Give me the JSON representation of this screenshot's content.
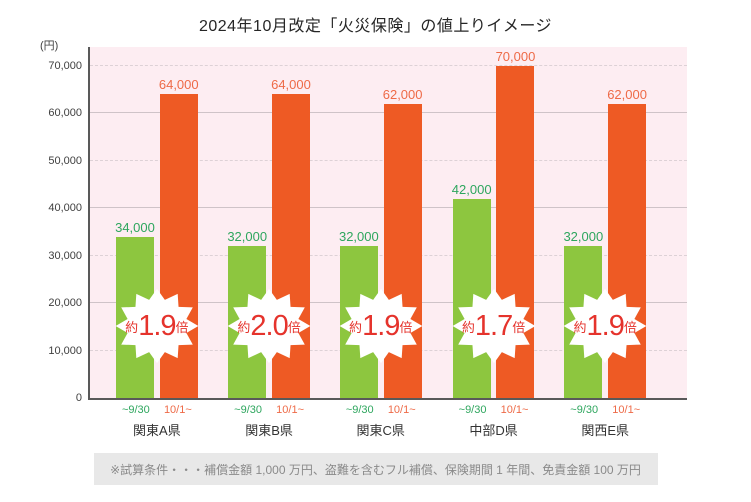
{
  "chart_data": {
    "type": "bar",
    "title": "2024年10月改定「火災保険」の値上りイメージ",
    "unit_label": "(円)",
    "ylim": [
      0,
      70000
    ],
    "yticks": [
      {
        "value": 0,
        "label": "0"
      },
      {
        "value": 10000,
        "label": "10,000"
      },
      {
        "value": 20000,
        "label": "20,000"
      },
      {
        "value": 30000,
        "label": "30,000"
      },
      {
        "value": 40000,
        "label": "40,000"
      },
      {
        "value": 50000,
        "label": "50,000"
      },
      {
        "value": 60000,
        "label": "60,000"
      },
      {
        "value": 70000,
        "label": "70,000"
      }
    ],
    "series": [
      {
        "name": "~9/30",
        "color": "#8dc63f"
      },
      {
        "name": "10/1~",
        "color": "#ee5a24"
      }
    ],
    "categories": [
      "関東A県",
      "関東B県",
      "関東C県",
      "中部D県",
      "関西E県"
    ],
    "groups": [
      {
        "category": "関東A県",
        "before": 34000,
        "after": 64000,
        "before_label": "34,000",
        "after_label": "64,000",
        "ratio_prefix": "約",
        "ratio_value": "1.9",
        "ratio_suffix": "倍"
      },
      {
        "category": "関東B県",
        "before": 32000,
        "after": 64000,
        "before_label": "32,000",
        "after_label": "64,000",
        "ratio_prefix": "約",
        "ratio_value": "2.0",
        "ratio_suffix": "倍"
      },
      {
        "category": "関東C県",
        "before": 32000,
        "after": 62000,
        "before_label": "32,000",
        "after_label": "62,000",
        "ratio_prefix": "約",
        "ratio_value": "1.9",
        "ratio_suffix": "倍"
      },
      {
        "category": "中部D県",
        "before": 42000,
        "after": 70000,
        "before_label": "42,000",
        "after_label": "70,000",
        "ratio_prefix": "約",
        "ratio_value": "1.7",
        "ratio_suffix": "倍"
      },
      {
        "category": "関西E県",
        "before": 32000,
        "after": 62000,
        "before_label": "32,000",
        "after_label": "62,000",
        "ratio_prefix": "約",
        "ratio_value": "1.9",
        "ratio_suffix": "倍"
      }
    ],
    "note": "※試算条件・・・補償金額 1,000 万円、盗難を含むフル補償、保険期間 1 年間、免責金額 100 万円",
    "legend_position": "below-bars",
    "grid": "horizontal, solid at even 10-thousands, dashed at odd 10-thousands"
  },
  "colors": {
    "green_bar": "#8dc63f",
    "orange_bar": "#ee5a24",
    "green_text": "#2ea65e",
    "orange_text": "#ee6a47",
    "badge_red": "#e5332c",
    "plot_bg": "#fdedf2",
    "grid_solid": "#cfc3c8",
    "grid_dashed": "#ddd1d6",
    "axis": "#595959",
    "footer_bg": "#e8e8e8",
    "footer_text": "#8a8a8a",
    "title_text": "#262626"
  }
}
